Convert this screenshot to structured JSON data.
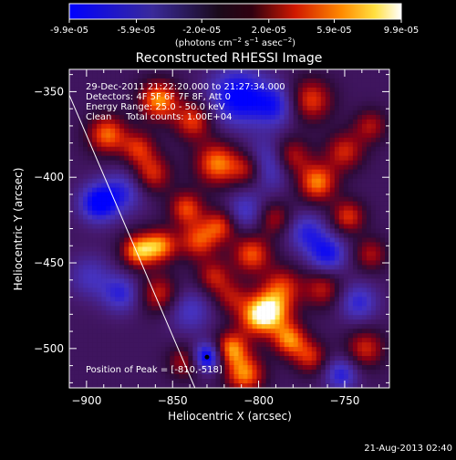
{
  "colorbar": {
    "tick_labels": [
      "-9.9e-05",
      "-5.9e-05",
      "-2.0e-05",
      "2.0e-05",
      "5.9e-05",
      "9.9e-05"
    ],
    "tick_values": [
      -9.9e-05,
      -5.9e-05,
      -2e-05,
      2e-05,
      5.9e-05,
      9.9e-05
    ],
    "range": [
      -9.9e-05,
      9.9e-05
    ],
    "colormap": "blue-black-red-yellow-white",
    "unit_parts": {
      "pre": "(photons cm",
      "exp1": "−2",
      "mid": " s",
      "exp2": "−1",
      "mid2": " asec",
      "exp3": "−2",
      "post": ")"
    }
  },
  "chart_data": {
    "type": "heatmap",
    "title": "Reconstructed RHESSI Image",
    "xlabel": "Heliocentric X (arcsec)",
    "ylabel": "Heliocentric Y (arcsec)",
    "xlim": [
      -910,
      -724
    ],
    "ylim": [
      -523,
      -337
    ],
    "x_ticks": [
      -900,
      -850,
      -800,
      -750
    ],
    "y_ticks": [
      -350,
      -400,
      -450,
      -500
    ],
    "x_tick_labels": [
      "−900",
      "−850",
      "−800",
      "−750"
    ],
    "y_tick_labels": [
      "−350",
      "−400",
      "−450",
      "−500"
    ],
    "annotations": [
      "29-Dec-2011 21:22:20.000 to 21:27:34.000",
      "Detectors: 4F 5F 6F 7F 8F, Att 0",
      "Energy Range: 25.0 - 50.0 keV",
      "Clean     Total counts: 1.00E+04"
    ],
    "peak_label": "Position of Peak = [-810,-518]",
    "peak": [
      -810,
      -518
    ],
    "limb": [
      [
        -910,
        -352
      ],
      [
        -837,
        -523
      ]
    ],
    "blobs": [
      {
        "x": -888,
        "y": -375,
        "v": 0.8,
        "r": 8
      },
      {
        "x": -870,
        "y": -383,
        "v": 0.6,
        "r": 7
      },
      {
        "x": -858,
        "y": -355,
        "v": 0.9,
        "r": 8
      },
      {
        "x": -838,
        "y": -367,
        "v": 0.7,
        "r": 8
      },
      {
        "x": -824,
        "y": -392,
        "v": 0.85,
        "r": 9
      },
      {
        "x": -806,
        "y": -395,
        "v": 0.6,
        "r": 7
      },
      {
        "x": -812,
        "y": -353,
        "v": -0.85,
        "r": 12
      },
      {
        "x": -790,
        "y": -358,
        "v": -0.6,
        "r": 9
      },
      {
        "x": -793,
        "y": -392,
        "v": -0.7,
        "r": 10
      },
      {
        "x": -782,
        "y": -388,
        "v": 0.75,
        "r": 8
      },
      {
        "x": -770,
        "y": -355,
        "v": 0.7,
        "r": 9
      },
      {
        "x": -750,
        "y": -385,
        "v": 0.6,
        "r": 8
      },
      {
        "x": -735,
        "y": -370,
        "v": 0.5,
        "r": 7
      },
      {
        "x": -766,
        "y": -403,
        "v": 0.85,
        "r": 8
      },
      {
        "x": -748,
        "y": -423,
        "v": 0.65,
        "r": 7
      },
      {
        "x": -772,
        "y": -432,
        "v": -0.55,
        "r": 8
      },
      {
        "x": -735,
        "y": -445,
        "v": 0.5,
        "r": 7
      },
      {
        "x": -893,
        "y": -415,
        "v": -0.85,
        "r": 8
      },
      {
        "x": -878,
        "y": -408,
        "v": -0.5,
        "r": 9
      },
      {
        "x": -862,
        "y": -398,
        "v": 0.65,
        "r": 8
      },
      {
        "x": -870,
        "y": -443,
        "v": 0.9,
        "r": 7
      },
      {
        "x": -857,
        "y": -440,
        "v": 0.8,
        "r": 7
      },
      {
        "x": -842,
        "y": -418,
        "v": 0.7,
        "r": 7
      },
      {
        "x": -835,
        "y": -437,
        "v": 0.7,
        "r": 8
      },
      {
        "x": -822,
        "y": -428,
        "v": 0.65,
        "r": 7
      },
      {
        "x": -808,
        "y": -420,
        "v": -0.5,
        "r": 8
      },
      {
        "x": -804,
        "y": -445,
        "v": 0.75,
        "r": 8
      },
      {
        "x": -791,
        "y": -424,
        "v": 0.5,
        "r": 7
      },
      {
        "x": -786,
        "y": -463,
        "v": 0.55,
        "r": 8
      },
      {
        "x": -898,
        "y": -458,
        "v": -0.4,
        "r": 9
      },
      {
        "x": -880,
        "y": -468,
        "v": -0.55,
        "r": 8
      },
      {
        "x": -858,
        "y": -468,
        "v": 0.6,
        "r": 8
      },
      {
        "x": -840,
        "y": -478,
        "v": -0.45,
        "r": 9
      },
      {
        "x": -826,
        "y": -458,
        "v": 0.55,
        "r": 7
      },
      {
        "x": -816,
        "y": -470,
        "v": 0.45,
        "r": 7
      },
      {
        "x": -802,
        "y": -482,
        "v": 0.6,
        "r": 8
      },
      {
        "x": -793,
        "y": -478,
        "v": 0.95,
        "r": 9
      },
      {
        "x": -782,
        "y": -495,
        "v": 0.8,
        "r": 7
      },
      {
        "x": -770,
        "y": -505,
        "v": 0.6,
        "r": 7
      },
      {
        "x": -763,
        "y": -465,
        "v": 0.55,
        "r": 8
      },
      {
        "x": -742,
        "y": -473,
        "v": -0.55,
        "r": 8
      },
      {
        "x": -738,
        "y": -500,
        "v": 0.6,
        "r": 8
      },
      {
        "x": -752,
        "y": -515,
        "v": -0.6,
        "r": 7
      },
      {
        "x": -760,
        "y": -445,
        "v": -0.7,
        "r": 8
      },
      {
        "x": -830,
        "y": -505,
        "v": -0.95,
        "r": 6
      },
      {
        "x": -843,
        "y": -508,
        "v": 0.5,
        "r": 7
      },
      {
        "x": -816,
        "y": -500,
        "v": 0.85,
        "r": 7
      },
      {
        "x": -808,
        "y": -515,
        "v": 0.85,
        "r": 8
      }
    ]
  },
  "footer": {
    "timestamp": "21-Aug-2013 02:40"
  }
}
